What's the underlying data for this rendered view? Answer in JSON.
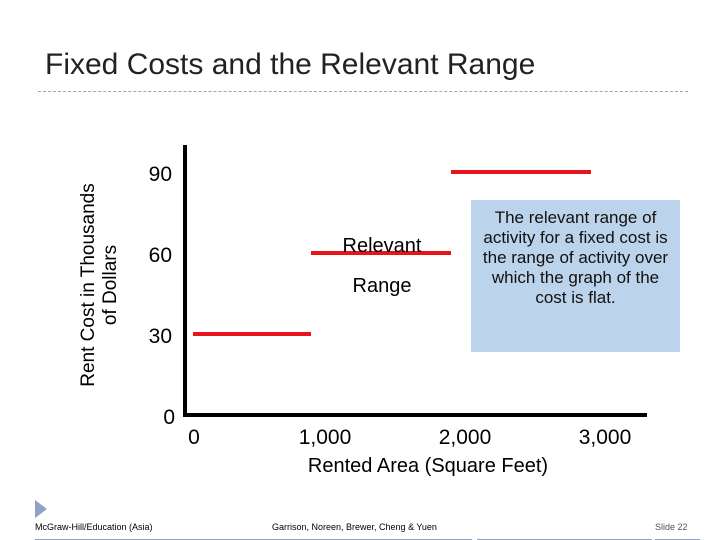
{
  "slide": {
    "title": "Fixed Costs and the Relevant Range",
    "footer_left": "McGraw-Hill/Education (Asia)",
    "footer_center": "Garrison, Noreen, Brewer, Cheng & Yuen",
    "footer_right": "Slide 22"
  },
  "callout": {
    "text": "The relevant range of activity for a fixed cost is the range of activity over which the graph of the cost is flat.",
    "background": "#bcd3ec"
  },
  "chart_data": {
    "type": "line",
    "title": "",
    "ylabel_lines": [
      "Rent Cost in Thousands",
      "of Dollars"
    ],
    "xlabel": "Rented Area (Square Feet)",
    "x_ticks": [
      0,
      1000,
      2000,
      3000
    ],
    "x_tick_labels": [
      "0",
      "1,000",
      "2,000",
      "3,000"
    ],
    "y_ticks": [
      0,
      30,
      60,
      90
    ],
    "y_tick_labels": [
      "0",
      "30",
      "60",
      "90"
    ],
    "xlim": [
      0,
      3300
    ],
    "ylim": [
      0,
      100
    ],
    "line_color": "#e8131b",
    "segments": [
      {
        "x": [
          0,
          900
        ],
        "y": [
          30,
          30
        ]
      },
      {
        "x": [
          900,
          1900
        ],
        "y": [
          60,
          60
        ]
      },
      {
        "x": [
          1900,
          2900
        ],
        "y": [
          90,
          90
        ]
      }
    ],
    "annotation_lines": [
      "Relevant",
      "Range"
    ],
    "grid": false
  }
}
